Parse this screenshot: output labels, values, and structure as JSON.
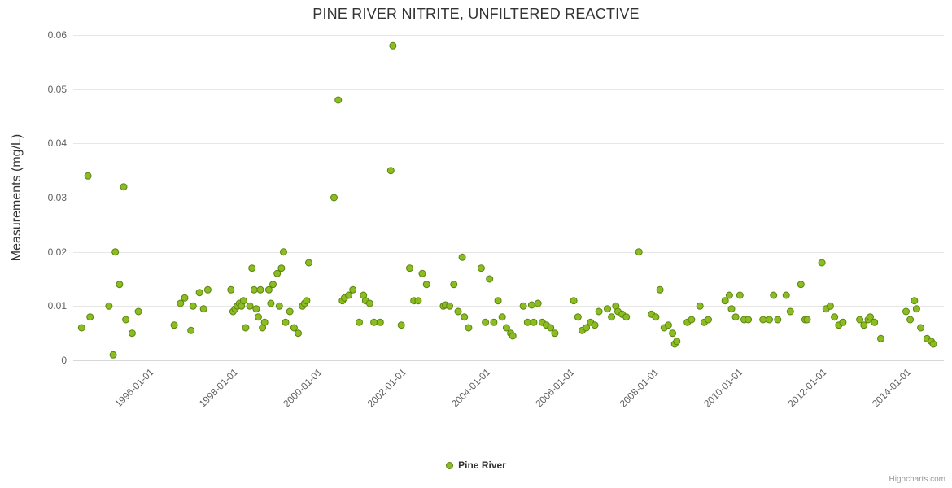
{
  "colors": {
    "title": "#333333",
    "axis_label": "#606060",
    "grid": "#e6e6e6",
    "axis_line": "#d8d8d8",
    "series": "#8bbc21",
    "series_stroke": "#5c8410"
  },
  "legend": {
    "label": "Pine River"
  },
  "credits": {
    "label": "Highcharts.com"
  },
  "chart_data": {
    "type": "scatter",
    "title": "PINE RIVER NITRITE, UNFILTERED REACTIVE",
    "xlabel": "",
    "ylabel": "Measurements (mg/L)",
    "ylim": [
      0,
      0.06
    ],
    "xlim_years": [
      1994.15,
      2014.85
    ],
    "grid": true,
    "legend_position": "bottom-center",
    "y_ticks": [
      {
        "v": 0,
        "label": "0"
      },
      {
        "v": 0.01,
        "label": "0.01"
      },
      {
        "v": 0.02,
        "label": "0.02"
      },
      {
        "v": 0.03,
        "label": "0.03"
      },
      {
        "v": 0.04,
        "label": "0.04"
      },
      {
        "v": 0.05,
        "label": "0.05"
      },
      {
        "v": 0.06,
        "label": "0.06"
      }
    ],
    "x_ticks": [
      {
        "year": 1996,
        "label": "1996-01-01"
      },
      {
        "year": 1998,
        "label": "1998-01-01"
      },
      {
        "year": 2000,
        "label": "2000-01-01"
      },
      {
        "year": 2002,
        "label": "2002-01-01"
      },
      {
        "year": 2004,
        "label": "2004-01-01"
      },
      {
        "year": 2006,
        "label": "2006-01-01"
      },
      {
        "year": 2008,
        "label": "2008-01-01"
      },
      {
        "year": 2010,
        "label": "2010-01-01"
      },
      {
        "year": 2012,
        "label": "2012-01-01"
      },
      {
        "year": 2014,
        "label": "2014-01-01"
      }
    ],
    "series": [
      {
        "name": "Pine River",
        "color": "#8bbc21",
        "marker_stroke": "#5c8410",
        "points": [
          [
            1994.35,
            0.006
          ],
          [
            1994.5,
            0.034
          ],
          [
            1994.55,
            0.008
          ],
          [
            1995.0,
            0.01
          ],
          [
            1995.1,
            0.001
          ],
          [
            1995.15,
            0.02
          ],
          [
            1995.25,
            0.014
          ],
          [
            1995.35,
            0.032
          ],
          [
            1995.4,
            0.0075
          ],
          [
            1995.55,
            0.005
          ],
          [
            1995.7,
            0.009
          ],
          [
            1996.55,
            0.0065
          ],
          [
            1996.7,
            0.0105
          ],
          [
            1996.8,
            0.0115
          ],
          [
            1996.95,
            0.0055
          ],
          [
            1997.0,
            0.01
          ],
          [
            1997.15,
            0.0125
          ],
          [
            1997.25,
            0.0095
          ],
          [
            1997.35,
            0.013
          ],
          [
            1997.9,
            0.013
          ],
          [
            1997.95,
            0.009
          ],
          [
            1998.0,
            0.0095
          ],
          [
            1998.05,
            0.01
          ],
          [
            1998.1,
            0.0105
          ],
          [
            1998.15,
            0.01
          ],
          [
            1998.2,
            0.011
          ],
          [
            1998.25,
            0.006
          ],
          [
            1998.35,
            0.01
          ],
          [
            1998.4,
            0.017
          ],
          [
            1998.45,
            0.013
          ],
          [
            1998.5,
            0.0095
          ],
          [
            1998.55,
            0.008
          ],
          [
            1998.6,
            0.013
          ],
          [
            1998.65,
            0.006
          ],
          [
            1998.7,
            0.007
          ],
          [
            1998.8,
            0.013
          ],
          [
            1998.85,
            0.0105
          ],
          [
            1998.9,
            0.014
          ],
          [
            1999.0,
            0.016
          ],
          [
            1999.05,
            0.01
          ],
          [
            1999.1,
            0.017
          ],
          [
            1999.15,
            0.02
          ],
          [
            1999.2,
            0.007
          ],
          [
            1999.3,
            0.009
          ],
          [
            1999.4,
            0.006
          ],
          [
            1999.5,
            0.005
          ],
          [
            1999.6,
            0.01
          ],
          [
            1999.65,
            0.0105
          ],
          [
            1999.7,
            0.011
          ],
          [
            1999.75,
            0.018
          ],
          [
            2000.35,
            0.03
          ],
          [
            2000.45,
            0.048
          ],
          [
            2000.55,
            0.011
          ],
          [
            2000.6,
            0.0115
          ],
          [
            2000.7,
            0.012
          ],
          [
            2000.8,
            0.013
          ],
          [
            2000.95,
            0.007
          ],
          [
            2001.05,
            0.012
          ],
          [
            2001.1,
            0.011
          ],
          [
            2001.2,
            0.0105
          ],
          [
            2001.3,
            0.007
          ],
          [
            2001.45,
            0.007
          ],
          [
            2001.7,
            0.035
          ],
          [
            2001.75,
            0.058
          ],
          [
            2001.95,
            0.0065
          ],
          [
            2002.15,
            0.017
          ],
          [
            2002.25,
            0.011
          ],
          [
            2002.35,
            0.011
          ],
          [
            2002.45,
            0.016
          ],
          [
            2002.55,
            0.014
          ],
          [
            2002.95,
            0.01
          ],
          [
            2003.0,
            0.0102
          ],
          [
            2003.1,
            0.01
          ],
          [
            2003.2,
            0.014
          ],
          [
            2003.3,
            0.009
          ],
          [
            2003.4,
            0.019
          ],
          [
            2003.45,
            0.008
          ],
          [
            2003.55,
            0.006
          ],
          [
            2003.85,
            0.017
          ],
          [
            2003.95,
            0.007
          ],
          [
            2004.05,
            0.015
          ],
          [
            2004.15,
            0.007
          ],
          [
            2004.25,
            0.011
          ],
          [
            2004.35,
            0.008
          ],
          [
            2004.45,
            0.006
          ],
          [
            2004.55,
            0.005
          ],
          [
            2004.6,
            0.0045
          ],
          [
            2004.85,
            0.01
          ],
          [
            2004.95,
            0.007
          ],
          [
            2005.05,
            0.0102
          ],
          [
            2005.1,
            0.007
          ],
          [
            2005.2,
            0.0105
          ],
          [
            2005.3,
            0.007
          ],
          [
            2005.4,
            0.0065
          ],
          [
            2005.5,
            0.006
          ],
          [
            2005.6,
            0.005
          ],
          [
            2006.05,
            0.011
          ],
          [
            2006.15,
            0.008
          ],
          [
            2006.25,
            0.0055
          ],
          [
            2006.35,
            0.006
          ],
          [
            2006.45,
            0.007
          ],
          [
            2006.55,
            0.0065
          ],
          [
            2006.65,
            0.009
          ],
          [
            2006.85,
            0.0095
          ],
          [
            2006.95,
            0.008
          ],
          [
            2007.05,
            0.01
          ],
          [
            2007.1,
            0.009
          ],
          [
            2007.2,
            0.0085
          ],
          [
            2007.3,
            0.008
          ],
          [
            2007.6,
            0.02
          ],
          [
            2007.9,
            0.0085
          ],
          [
            2008.0,
            0.008
          ],
          [
            2008.1,
            0.013
          ],
          [
            2008.2,
            0.006
          ],
          [
            2008.3,
            0.0065
          ],
          [
            2008.4,
            0.005
          ],
          [
            2008.45,
            0.003
          ],
          [
            2008.5,
            0.0035
          ],
          [
            2008.75,
            0.007
          ],
          [
            2008.85,
            0.0075
          ],
          [
            2009.05,
            0.01
          ],
          [
            2009.15,
            0.007
          ],
          [
            2009.25,
            0.0075
          ],
          [
            2009.65,
            0.011
          ],
          [
            2009.75,
            0.012
          ],
          [
            2009.8,
            0.0095
          ],
          [
            2009.9,
            0.008
          ],
          [
            2010.0,
            0.012
          ],
          [
            2010.1,
            0.0075
          ],
          [
            2010.2,
            0.0075
          ],
          [
            2010.55,
            0.0075
          ],
          [
            2010.7,
            0.0075
          ],
          [
            2010.8,
            0.012
          ],
          [
            2010.9,
            0.0075
          ],
          [
            2011.1,
            0.012
          ],
          [
            2011.2,
            0.009
          ],
          [
            2011.45,
            0.014
          ],
          [
            2011.55,
            0.0075
          ],
          [
            2011.6,
            0.0075
          ],
          [
            2011.95,
            0.018
          ],
          [
            2012.05,
            0.0095
          ],
          [
            2012.15,
            0.01
          ],
          [
            2012.25,
            0.008
          ],
          [
            2012.35,
            0.0065
          ],
          [
            2012.45,
            0.007
          ],
          [
            2012.85,
            0.0075
          ],
          [
            2012.95,
            0.0065
          ],
          [
            2013.05,
            0.0075
          ],
          [
            2013.1,
            0.008
          ],
          [
            2013.2,
            0.007
          ],
          [
            2013.35,
            0.004
          ],
          [
            2013.95,
            0.009
          ],
          [
            2014.05,
            0.0075
          ],
          [
            2014.15,
            0.011
          ],
          [
            2014.2,
            0.0095
          ],
          [
            2014.3,
            0.006
          ],
          [
            2014.45,
            0.004
          ],
          [
            2014.55,
            0.0035
          ],
          [
            2014.6,
            0.003
          ]
        ]
      }
    ]
  }
}
